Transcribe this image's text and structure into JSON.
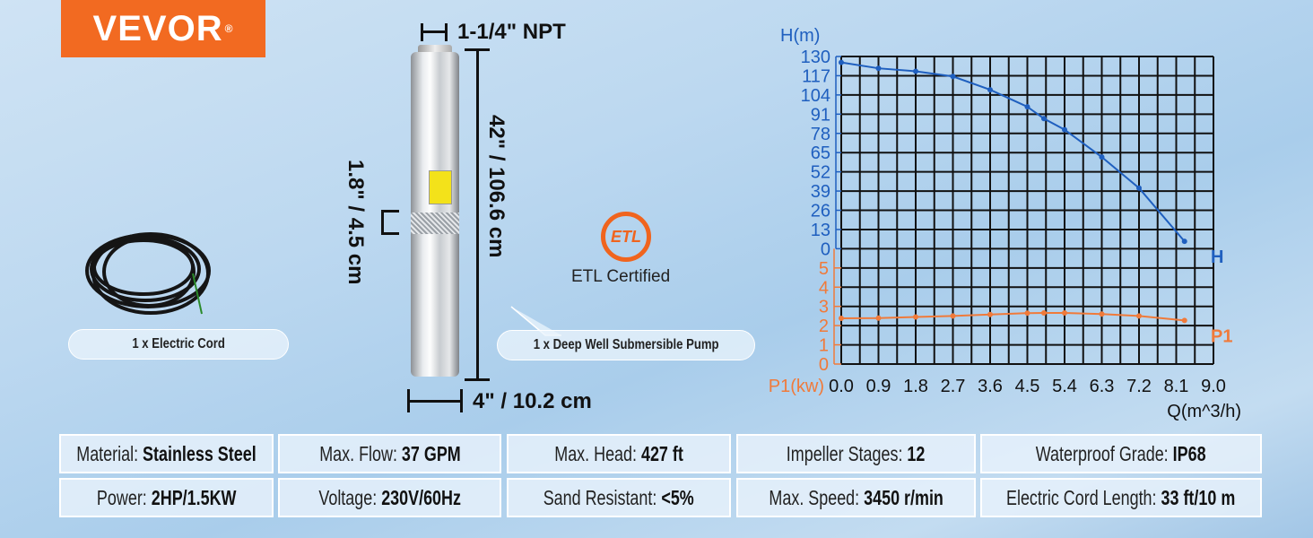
{
  "brand": {
    "logo_text": "VEVOR",
    "registered": "®",
    "color": "#f26a21"
  },
  "dimensions": {
    "outlet": "1-1/4\" NPT",
    "length": "42\" / 106.6 cm",
    "inlet": "1.8\" / 4.5 cm",
    "diameter": "4\" / 10.2 cm"
  },
  "items": {
    "cord": "1 x Electric Cord",
    "pump": "1 x Deep Well Submersible Pump"
  },
  "certification": {
    "logo_text": "ETL",
    "label": "ETL Certified"
  },
  "specs": [
    [
      {
        "label": "Material: ",
        "value": "Stainless Steel"
      },
      {
        "label": "Max. Flow: ",
        "value": "37 GPM"
      },
      {
        "label": "Max. Head: ",
        "value": "427 ft"
      },
      {
        "label": "Impeller Stages: ",
        "value": "12"
      },
      {
        "label": "Waterproof Grade: ",
        "value": "IP68"
      }
    ],
    [
      {
        "label": "Power: ",
        "value": "2HP/1.5KW"
      },
      {
        "label": "Voltage: ",
        "value": "230V/60Hz"
      },
      {
        "label": "Sand Resistant: ",
        "value": "<5%"
      },
      {
        "label": "Max. Speed: ",
        "value": "3450 r/min"
      },
      {
        "label": "Electric Cord Length: ",
        "value": "33 ft/10 m"
      }
    ]
  ],
  "chart_data": {
    "type": "line",
    "xlabel": "Q(m^3/h)",
    "xlim": [
      0,
      9
    ],
    "xticks": [
      "0.0",
      "0.9",
      "1.8",
      "2.7",
      "3.6",
      "4.5",
      "5.4",
      "6.3",
      "7.2",
      "8.1",
      "9.0"
    ],
    "grid": true,
    "axes": {
      "H": {
        "label": "H(m)",
        "ylim": [
          0,
          130
        ],
        "ticks": [
          "0",
          "13",
          "26",
          "39",
          "52",
          "65",
          "78",
          "91",
          "104",
          "117",
          "130"
        ],
        "color": "#1f5fbf"
      },
      "P1": {
        "label": "P1(kw)",
        "ylim": [
          0,
          5
        ],
        "ticks": [
          "0",
          "1",
          "2",
          "3",
          "4",
          "5"
        ],
        "color": "#f07a3a"
      }
    },
    "series": [
      {
        "name": "H",
        "axis": "H",
        "color": "#1f5fbf",
        "x": [
          0,
          0.9,
          1.8,
          2.7,
          3.6,
          4.5,
          4.9,
          5.4,
          6.3,
          7.2,
          8.3
        ],
        "y": [
          126,
          122,
          120,
          116.5,
          107.5,
          96,
          88,
          80.5,
          62,
          41,
          5
        ]
      },
      {
        "name": "P1",
        "axis": "P1",
        "color": "#f07a3a",
        "x": [
          0,
          0.9,
          1.8,
          2.7,
          3.6,
          4.5,
          4.9,
          5.4,
          6.3,
          7.2,
          8.3
        ],
        "y": [
          2.38,
          2.39,
          2.45,
          2.5,
          2.58,
          2.65,
          2.66,
          2.66,
          2.6,
          2.5,
          2.27
        ]
      }
    ]
  }
}
